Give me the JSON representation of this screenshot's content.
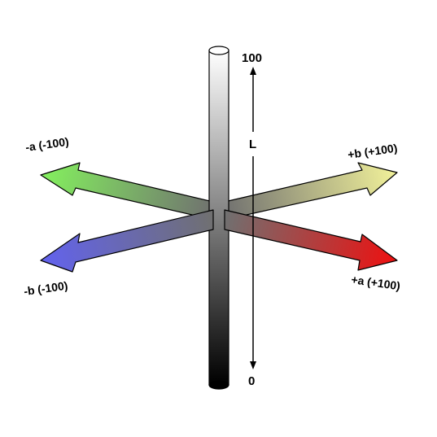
{
  "diagram": {
    "axis_l": {
      "top_label": "100",
      "bottom_label": "0",
      "name": "L"
    },
    "axes": {
      "neg_a": {
        "label": "-a (-100)",
        "color": "#84f15e"
      },
      "pos_a": {
        "label": "+a (+100)",
        "color": "#ee1010"
      },
      "neg_b": {
        "label": "-b (-100)",
        "color": "#6262ef"
      },
      "pos_b": {
        "label": "+b (+100)",
        "color": "#f2f29a"
      }
    },
    "colors": {
      "center": "#707070",
      "column_top": "#ffffff",
      "column_bottom": "#000000",
      "line": "#000000"
    }
  }
}
